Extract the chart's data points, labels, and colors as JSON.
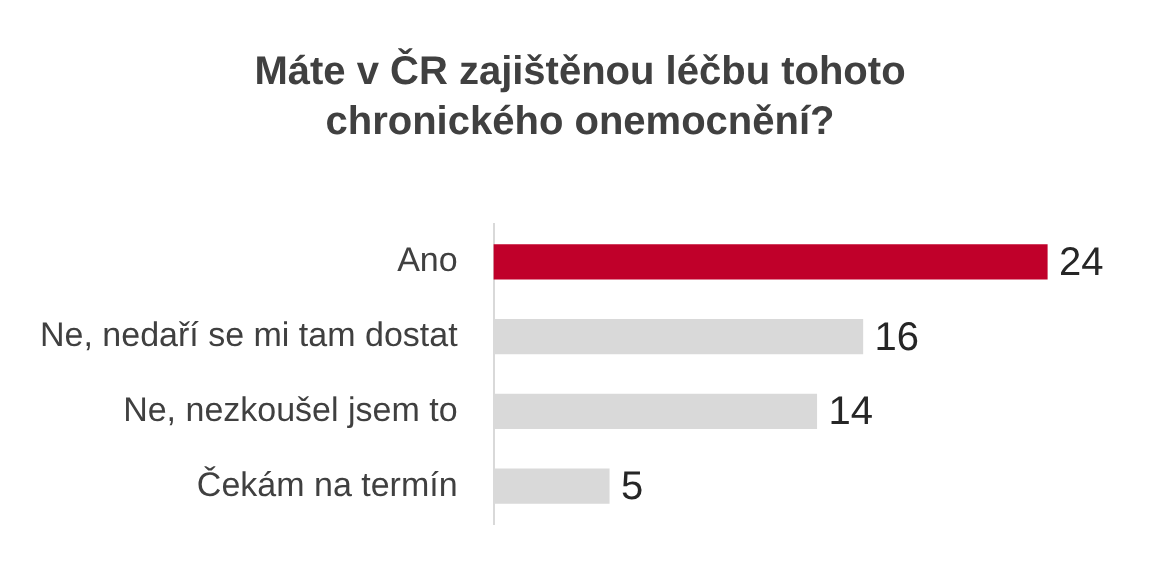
{
  "chart_data": {
    "type": "bar",
    "orientation": "horizontal",
    "title": "Máte v ČR zajištěnou léčbu tohoto chronického onemocnění?",
    "categories": [
      "Ano",
      "Ne, nedaří se mi tam dostat",
      "Ne, nezkoušel jsem to",
      "Čekám na termín"
    ],
    "values": [
      24,
      16,
      14,
      5
    ],
    "colors": [
      "#c0002a",
      "#d9d9d9",
      "#d9d9d9",
      "#d9d9d9"
    ],
    "data_labels": true,
    "grid": false,
    "legend": false
  }
}
